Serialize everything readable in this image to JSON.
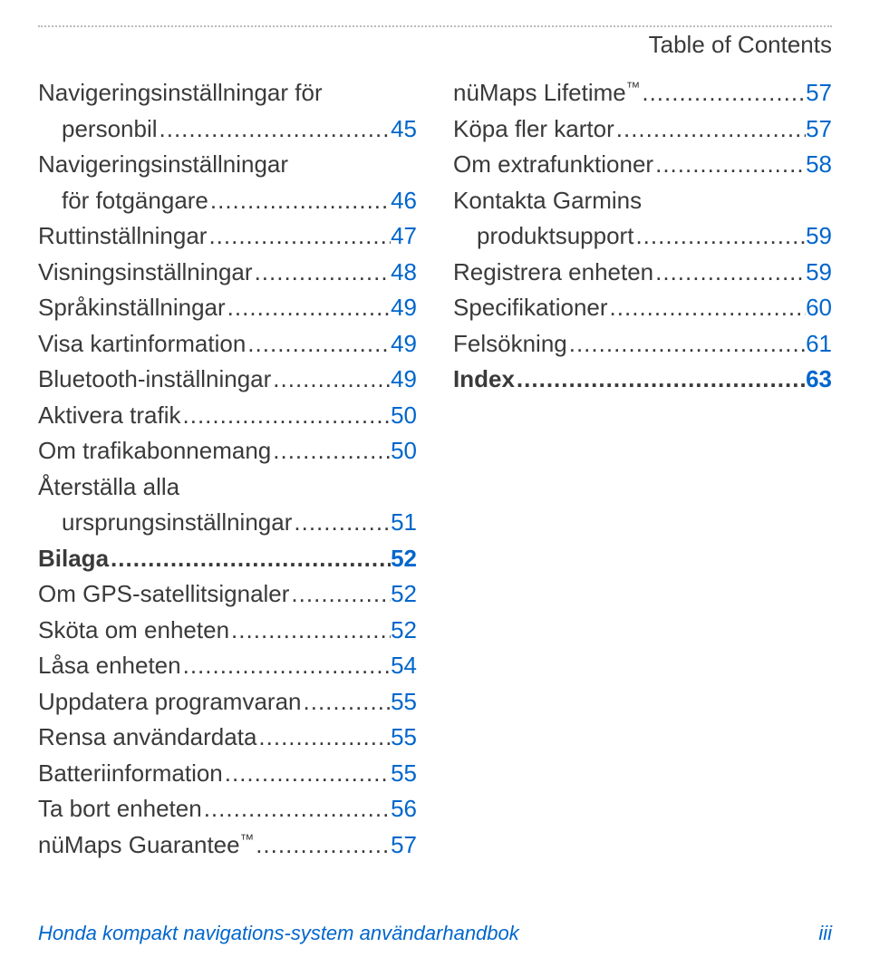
{
  "header": {
    "title": "Table of Contents"
  },
  "colors": {
    "text": "#3a3a3a",
    "link": "#0066cc",
    "rule": "#bbbbbb",
    "background": "#ffffff"
  },
  "columns": {
    "left": [
      {
        "type": "wrap",
        "text": "Navigeringsinställningar för"
      },
      {
        "type": "entry",
        "indent": true,
        "label": "personbil",
        "page": "45"
      },
      {
        "type": "wrap",
        "text": "Navigeringsinställningar"
      },
      {
        "type": "entry",
        "indent": true,
        "label": "för fotgängare",
        "page": "46"
      },
      {
        "type": "entry",
        "label": "Ruttinställningar",
        "page": "47"
      },
      {
        "type": "entry",
        "label": "Visningsinställningar",
        "page": "48"
      },
      {
        "type": "entry",
        "label": "Språkinställningar",
        "page": "49"
      },
      {
        "type": "entry",
        "label": "Visa kartinformation",
        "page": "49"
      },
      {
        "type": "entry",
        "label": "Bluetooth-inställningar",
        "page": "49"
      },
      {
        "type": "entry",
        "label": "Aktivera trafik",
        "page": "50"
      },
      {
        "type": "entry",
        "label": "Om trafikabonnemang",
        "page": "50"
      },
      {
        "type": "wrap",
        "text": "Återställa alla"
      },
      {
        "type": "entry",
        "indent": true,
        "label": "ursprungsinställningar",
        "page": "51"
      },
      {
        "type": "entry",
        "bold": true,
        "label": "Bilaga",
        "page": "52"
      },
      {
        "type": "entry",
        "label": "Om GPS-satellitsignaler",
        "page": "52"
      },
      {
        "type": "entry",
        "label": "Sköta om enheten",
        "page": "52"
      },
      {
        "type": "entry",
        "label": "Låsa enheten",
        "page": "54"
      },
      {
        "type": "entry",
        "label": "Uppdatera programvaran",
        "page": "55"
      },
      {
        "type": "entry",
        "label": "Rensa användardata",
        "page": "55"
      },
      {
        "type": "entry",
        "label": "Batteriinformation",
        "page": "55"
      },
      {
        "type": "entry",
        "label": "Ta bort enheten",
        "page": "56"
      },
      {
        "type": "entry",
        "label": "nüMaps Guarantee",
        "sup": "™",
        "page": "57"
      }
    ],
    "right": [
      {
        "type": "entry",
        "label": "nüMaps Lifetime",
        "sup": "™",
        "page": "57"
      },
      {
        "type": "entry",
        "label": "Köpa fler kartor",
        "page": "57"
      },
      {
        "type": "entry",
        "label": "Om extrafunktioner",
        "page": "58"
      },
      {
        "type": "wrap",
        "text": "Kontakta Garmins"
      },
      {
        "type": "entry",
        "indent": true,
        "label": "produktsupport",
        "page": "59"
      },
      {
        "type": "entry",
        "label": "Registrera enheten",
        "page": "59"
      },
      {
        "type": "entry",
        "label": "Specifikationer",
        "page": "60"
      },
      {
        "type": "entry",
        "label": "Felsökning",
        "page": "61"
      },
      {
        "type": "entry",
        "bold": true,
        "label": "Index",
        "page": "63"
      }
    ]
  },
  "footer": {
    "text": "Honda kompakt navigations-system användarhandbok",
    "page": "iii"
  },
  "leaderGlyph": "."
}
